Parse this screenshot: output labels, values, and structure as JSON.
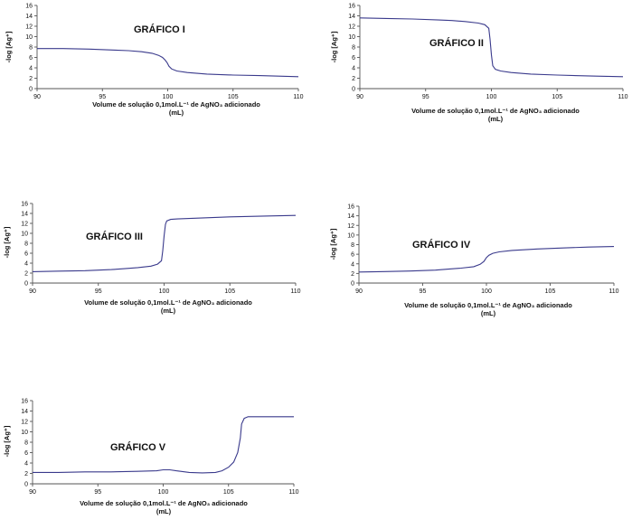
{
  "chart_data": [
    {
      "type": "line",
      "title": "GRÁFICO I",
      "xlabel": "Volume de solução 0,1mol.L⁻¹ de AgNO₃ adicionado",
      "xlabel_unit": "(mL)",
      "ylabel": "-log [Ag⁺]",
      "xlim": [
        90,
        110
      ],
      "ylim": [
        0,
        16
      ],
      "xticks": [
        90,
        95,
        100,
        105,
        110
      ],
      "yticks": [
        0,
        2,
        4,
        6,
        8,
        10,
        12,
        14,
        16
      ],
      "series": [
        {
          "name": "-log [Ag⁺]",
          "x": [
            90,
            92,
            94,
            96,
            97,
            98,
            98.8,
            99.3,
            99.6,
            99.8,
            99.95,
            100.1,
            100.3,
            100.7,
            101.5,
            103,
            105,
            107,
            110
          ],
          "y": [
            7.7,
            7.7,
            7.6,
            7.4,
            7.3,
            7.1,
            6.8,
            6.4,
            6.0,
            5.5,
            5.0,
            4.3,
            3.8,
            3.4,
            3.1,
            2.8,
            2.6,
            2.5,
            2.3
          ]
        }
      ]
    },
    {
      "type": "line",
      "title": "GRÁFICO II",
      "xlabel": "Volume de solução 0,1mol.L⁻¹ de AgNO₃ adicionado",
      "xlabel_unit": "(mL)",
      "ylabel": "-log [Ag⁺]",
      "xlim": [
        90,
        110
      ],
      "ylim": [
        0,
        16
      ],
      "xticks": [
        90,
        95,
        100,
        105,
        110
      ],
      "yticks": [
        0,
        2,
        4,
        6,
        8,
        10,
        12,
        14,
        16
      ],
      "series": [
        {
          "name": "-log [Ag⁺]",
          "x": [
            90,
            92,
            94,
            96,
            97,
            98,
            99,
            99.5,
            99.8,
            99.9,
            100,
            100.1,
            100.3,
            100.7,
            101.5,
            103,
            105,
            108,
            110
          ],
          "y": [
            13.6,
            13.5,
            13.4,
            13.2,
            13.1,
            12.9,
            12.6,
            12.3,
            11.6,
            9.5,
            6.5,
            4.4,
            3.7,
            3.4,
            3.1,
            2.8,
            2.6,
            2.4,
            2.3
          ]
        }
      ]
    },
    {
      "type": "line",
      "title": "GRÁFICO III",
      "xlabel": "Volume de solução 0,1mol.L⁻¹ de AgNO₃ adicionado",
      "xlabel_unit": "(mL)",
      "ylabel": "-log [Ag⁺]",
      "xlim": [
        90,
        110
      ],
      "ylim": [
        0,
        16
      ],
      "xticks": [
        90,
        95,
        100,
        105,
        110
      ],
      "yticks": [
        0,
        2,
        4,
        6,
        8,
        10,
        12,
        14,
        16
      ],
      "series": [
        {
          "name": "-log [Ag⁺]",
          "x": [
            90,
            92,
            94,
            96,
            97,
            98,
            99,
            99.5,
            99.8,
            99.9,
            100,
            100.1,
            100.2,
            100.5,
            101,
            103,
            105,
            108,
            110
          ],
          "y": [
            2.3,
            2.4,
            2.5,
            2.7,
            2.9,
            3.1,
            3.4,
            3.8,
            4.5,
            6.5,
            9.5,
            11.8,
            12.5,
            12.8,
            12.9,
            13.1,
            13.3,
            13.5,
            13.6
          ]
        }
      ]
    },
    {
      "type": "line",
      "title": "GRÁFICO IV",
      "xlabel": "Volume de solução 0,1mol.L⁻¹ de AgNO₃ adicionado",
      "xlabel_unit": "(mL)",
      "ylabel": "-log [Ag⁺]",
      "xlim": [
        90,
        110
      ],
      "ylim": [
        0,
        16
      ],
      "xticks": [
        90,
        95,
        100,
        105,
        110
      ],
      "yticks": [
        0,
        2,
        4,
        6,
        8,
        10,
        12,
        14,
        16
      ],
      "series": [
        {
          "name": "-log [Ag⁺]",
          "x": [
            90,
            92,
            94,
            96,
            97,
            98,
            99,
            99.5,
            99.8,
            100,
            100.2,
            100.5,
            101,
            102,
            104,
            106,
            108,
            110
          ],
          "y": [
            2.3,
            2.4,
            2.5,
            2.7,
            2.9,
            3.1,
            3.4,
            3.9,
            4.5,
            5.3,
            5.8,
            6.2,
            6.5,
            6.8,
            7.1,
            7.3,
            7.5,
            7.6
          ]
        }
      ]
    },
    {
      "type": "line",
      "title": "GRÁFICO V",
      "xlabel": "Volume de solução 0,1mol.L⁻¹ de AgNO₃ adicionado",
      "xlabel_unit": "(mL)",
      "ylabel": "-log [Ag⁺]",
      "xlim": [
        90,
        110
      ],
      "ylim": [
        0,
        16
      ],
      "xticks": [
        90,
        95,
        100,
        105,
        110
      ],
      "yticks": [
        0,
        2,
        4,
        6,
        8,
        10,
        12,
        14,
        16
      ],
      "series": [
        {
          "name": "-log [Ag⁺]",
          "x": [
            90,
            92,
            94,
            96,
            98,
            99.5,
            100,
            100.5,
            101,
            102,
            103,
            104,
            104.5,
            105,
            105.4,
            105.7,
            105.9,
            106,
            106.2,
            106.5,
            107,
            108,
            110
          ],
          "y": [
            2.2,
            2.2,
            2.3,
            2.3,
            2.4,
            2.5,
            2.7,
            2.7,
            2.5,
            2.2,
            2.1,
            2.2,
            2.5,
            3.2,
            4.2,
            6.0,
            8.8,
            11.5,
            12.6,
            12.9,
            12.9,
            12.9,
            12.9
          ]
        }
      ]
    }
  ]
}
